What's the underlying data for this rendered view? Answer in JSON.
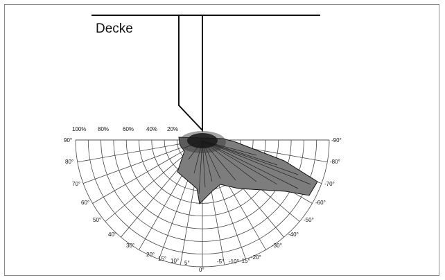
{
  "diagram": {
    "ceiling_label": "Decke",
    "intensity_labels": [
      "100%",
      "80%",
      "60%",
      "40%",
      "20%"
    ],
    "left_angle_labels": [
      "90°",
      "80°",
      "70°",
      "60°",
      "50°",
      "40°",
      "30°",
      "20°",
      "15°",
      "10°",
      "5°"
    ],
    "right_angle_labels": [
      "-90°",
      "-80°",
      "-70°",
      "-60°",
      "-50°",
      "-40°",
      "-30°",
      "-20°",
      "-15°",
      "-10°",
      "-5°"
    ],
    "center_angle_label": "0°"
  },
  "colors": {
    "line": "#111111",
    "grid": "#444444",
    "pattern_fill": "#7d7d7d",
    "hotspot": "#000000",
    "frame": "#8a8a8a"
  }
}
